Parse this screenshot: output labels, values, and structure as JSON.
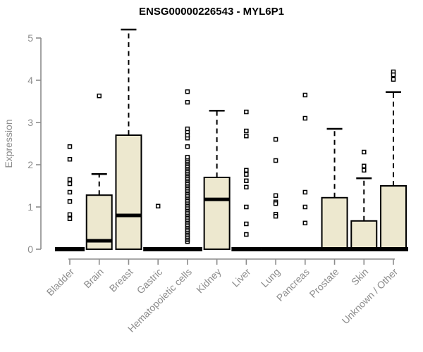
{
  "title": "ENSG00000226543 - MYL6P1",
  "y_axis": {
    "label": "Expression"
  },
  "colors": {
    "box_fill": "#ede8cf",
    "box_stroke": "#000000",
    "median": "#000000",
    "outlier_fill": "#ffffff",
    "axis": "#8c8c8c",
    "title": "#000000",
    "background": "#ffffff"
  },
  "chart_data": {
    "type": "boxplot",
    "title": "ENSG00000226543 - MYL6P1",
    "xlabel": "",
    "ylabel": "Expression",
    "ylim": [
      0,
      5
    ],
    "y_ticks": [
      0,
      1,
      2,
      3,
      4,
      5
    ],
    "grid": false,
    "legend": "none",
    "categories": [
      "Bladder",
      "Brain",
      "Breast",
      "Gastric",
      "Hematopoietic cells",
      "Kidney",
      "Liver",
      "Lung",
      "Pancreas",
      "Prostate",
      "Skin",
      "Unknown / Other"
    ],
    "boxes": [
      {
        "category": "Bladder",
        "q1": 0,
        "median": 0,
        "q3": 0,
        "whisker_low": 0,
        "whisker_high": 0,
        "outliers": [
          2.43,
          2.13,
          1.65,
          1.55,
          1.35,
          1.13,
          0.82,
          0.72
        ]
      },
      {
        "category": "Brain",
        "q1": 0,
        "median": 0.2,
        "q3": 1.28,
        "whisker_low": 0,
        "whisker_high": 1.78,
        "outliers": [
          3.63
        ]
      },
      {
        "category": "Breast",
        "q1": 0,
        "median": 0.8,
        "q3": 2.7,
        "whisker_low": 0,
        "whisker_high": 5.2,
        "outliers": []
      },
      {
        "category": "Gastric",
        "q1": 0,
        "median": 0,
        "q3": 0,
        "whisker_low": 0,
        "whisker_high": 0,
        "outliers": [
          1.02
        ]
      },
      {
        "category": "Hematopoietic cells",
        "q1": 0,
        "median": 0,
        "q3": 0,
        "whisker_low": 0,
        "whisker_high": 0,
        "outliers": [
          0.18,
          0.22,
          0.26,
          0.3,
          0.34,
          0.38,
          0.42,
          0.46,
          0.5,
          0.54,
          0.58,
          0.62,
          0.66,
          0.7,
          0.74,
          0.78,
          0.82,
          0.86,
          0.9,
          0.94,
          0.98,
          1.02,
          1.06,
          1.1,
          1.14,
          1.18,
          1.22,
          1.26,
          1.3,
          1.34,
          1.38,
          1.42,
          1.46,
          1.5,
          1.54,
          1.58,
          1.62,
          1.66,
          1.7,
          1.74,
          1.78,
          1.82,
          1.86,
          1.9,
          1.94,
          1.98,
          2.02,
          2.06,
          2.1,
          2.14,
          2.18,
          2.43,
          2.63,
          2.7,
          2.78,
          2.85,
          3.48,
          3.73
        ]
      },
      {
        "category": "Kidney",
        "q1": 0,
        "median": 1.18,
        "q3": 1.7,
        "whisker_low": 0,
        "whisker_high": 3.28,
        "outliers": []
      },
      {
        "category": "Liver",
        "q1": 0,
        "median": 0,
        "q3": 0,
        "whisker_low": 0,
        "whisker_high": 0,
        "outliers": [
          3.25,
          2.8,
          2.68,
          1.87,
          1.77,
          1.62,
          1.47,
          1.0,
          0.6,
          0.35
        ]
      },
      {
        "category": "Lung",
        "q1": 0,
        "median": 0,
        "q3": 0,
        "whisker_low": 0,
        "whisker_high": 0,
        "outliers": [
          2.6,
          2.1,
          1.27,
          1.12,
          1.08,
          0.83,
          0.78
        ]
      },
      {
        "category": "Pancreas",
        "q1": 0,
        "median": 0,
        "q3": 0,
        "whisker_low": 0,
        "whisker_high": 0,
        "outliers": [
          3.65,
          3.1,
          1.35,
          1.0,
          0.62
        ]
      },
      {
        "category": "Prostate",
        "q1": 0,
        "median": 0,
        "q3": 1.22,
        "whisker_low": 0,
        "whisker_high": 2.85,
        "outliers": []
      },
      {
        "category": "Skin",
        "q1": 0,
        "median": 0,
        "q3": 0.67,
        "whisker_low": 0,
        "whisker_high": 1.68,
        "outliers": [
          2.3,
          1.97,
          1.87
        ]
      },
      {
        "category": "Unknown / Other",
        "q1": 0,
        "median": 0,
        "q3": 1.5,
        "whisker_low": 0,
        "whisker_high": 3.72,
        "outliers": [
          4.2,
          4.13,
          4.02
        ]
      }
    ]
  }
}
